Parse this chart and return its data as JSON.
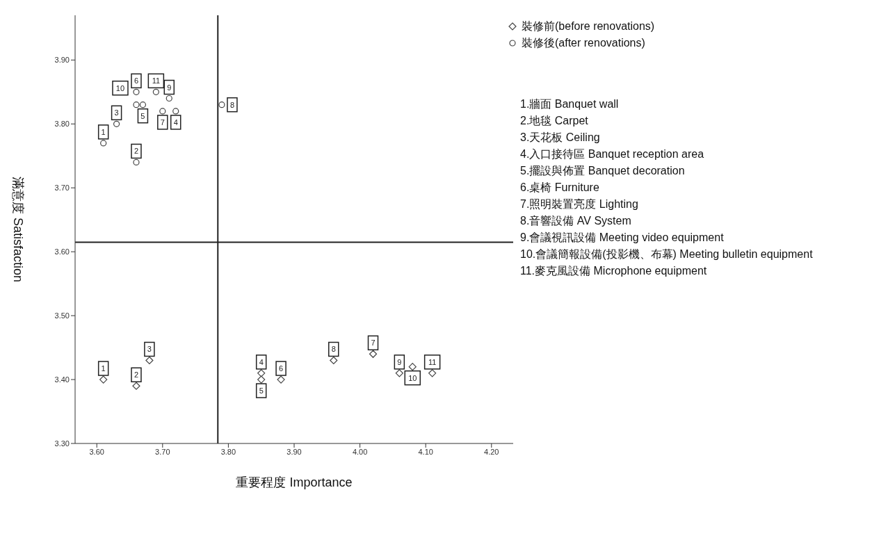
{
  "chart_data": {
    "type": "scatter",
    "xlabel": "重要程度  Importance",
    "ylabel": "滿意度 Satisfaction",
    "xlim": [
      3.567,
      4.233
    ],
    "xticks": [
      {
        "value": 3.6,
        "label": "3.60"
      },
      {
        "value": 3.7,
        "label": "3.70"
      },
      {
        "value": 3.8,
        "label": "3.80"
      },
      {
        "value": 3.9,
        "label": "3.90"
      },
      {
        "value": 4.0,
        "label": "4.00"
      },
      {
        "value": 4.1,
        "label": "4.10"
      },
      {
        "value": 4.2,
        "label": "4.20"
      }
    ],
    "ylim": [
      3.3,
      3.97
    ],
    "yticks": [
      {
        "value": 3.3,
        "label": "3.30"
      },
      {
        "value": 3.4,
        "label": "3.40"
      },
      {
        "value": 3.5,
        "label": "3.50"
      },
      {
        "value": 3.6,
        "label": "3.60"
      },
      {
        "value": 3.7,
        "label": "3.70"
      },
      {
        "value": 3.8,
        "label": "3.80"
      },
      {
        "value": 3.9,
        "label": "3.90"
      }
    ],
    "grid": false,
    "legend": "top right",
    "series": [
      {
        "name": "裝修前(before renovations)",
        "color": "#444444",
        "marker": "diamond",
        "x": [
          3.61,
          3.66,
          3.68,
          3.85,
          3.85,
          3.88,
          4.02,
          3.96,
          4.06,
          4.08,
          4.11
        ],
        "values": [
          3.4,
          3.39,
          3.43,
          3.41,
          3.4,
          3.4,
          3.44,
          3.43,
          3.41,
          3.42,
          3.41
        ]
      },
      {
        "name": "裝修後(after renovations)",
        "color": "#444444",
        "marker": "circle",
        "x": [
          3.61,
          3.66,
          3.63,
          3.72,
          3.67,
          3.66,
          3.7,
          3.79,
          3.71,
          3.66,
          3.69
        ],
        "values": [
          3.77,
          3.74,
          3.8,
          3.82,
          3.83,
          3.85,
          3.82,
          3.83,
          3.84,
          3.83,
          3.85
        ]
      }
    ],
    "ref_lines": [
      {
        "axis": "x",
        "value": 3.784,
        "color": "#222222"
      },
      {
        "axis": "y",
        "value": 3.615,
        "color": "#222222"
      }
    ],
    "annotations": [
      {
        "text": "1",
        "x": 3.61,
        "y": 3.4
      },
      {
        "text": "2",
        "x": 3.66,
        "y": 3.39
      },
      {
        "text": "3",
        "x": 3.68,
        "y": 3.43
      },
      {
        "text": "4",
        "x": 3.85,
        "y": 3.41
      },
      {
        "text": "5",
        "x": 3.85,
        "y": 3.4
      },
      {
        "text": "6",
        "x": 3.88,
        "y": 3.4
      },
      {
        "text": "7",
        "x": 4.02,
        "y": 3.44
      },
      {
        "text": "8",
        "x": 3.96,
        "y": 3.43
      },
      {
        "text": "9",
        "x": 4.06,
        "y": 3.41
      },
      {
        "text": "10",
        "x": 4.08,
        "y": 3.42
      },
      {
        "text": "11",
        "x": 4.11,
        "y": 3.41
      },
      {
        "text": "1",
        "x": 3.61,
        "y": 3.77
      },
      {
        "text": "2",
        "x": 3.66,
        "y": 3.74
      },
      {
        "text": "3",
        "x": 3.63,
        "y": 3.8
      },
      {
        "text": "4",
        "x": 3.72,
        "y": 3.82
      },
      {
        "text": "5",
        "x": 3.67,
        "y": 3.83
      },
      {
        "text": "6",
        "x": 3.66,
        "y": 3.85
      },
      {
        "text": "7",
        "x": 3.7,
        "y": 3.82
      },
      {
        "text": "8",
        "x": 3.79,
        "y": 3.83
      },
      {
        "text": "9",
        "x": 3.71,
        "y": 3.84
      },
      {
        "text": "10",
        "x": 3.66,
        "y": 3.83
      },
      {
        "text": "11",
        "x": 3.69,
        "y": 3.85
      },
      "1.牆面 Banquet wall",
      "2.地毯 Carpet",
      "3.天花板 Ceiling",
      "4.入口接待區 Banquet reception area",
      "5.擺設與佈置 Banquet decoration",
      "6.桌椅 Furniture",
      "7.照明裝置亮度 Lighting",
      "8.音響設備 AV System",
      "9.會議視訊設備 Meeting video equipment",
      "10.會議簡報設備(投影機、布幕) Meeting bulletin equipment",
      "11.麥克風設備 Microphone equipment"
    ]
  }
}
